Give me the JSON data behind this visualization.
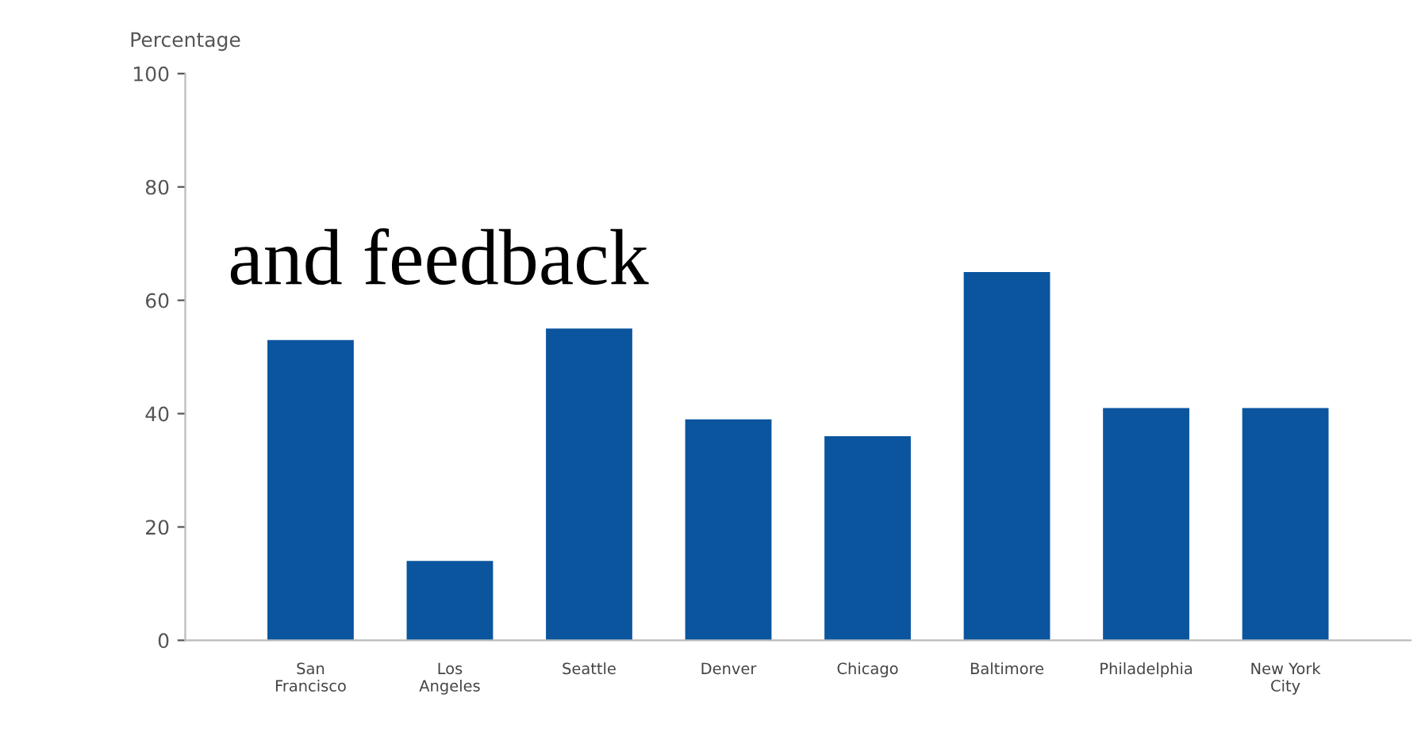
{
  "chart_data": {
    "type": "bar",
    "ylabel": "Percentage",
    "categories": [
      "San\nFrancisco",
      "Los\nAngeles",
      "Seattle",
      "Denver",
      "Chicago",
      "Baltimore",
      "Philadelphia",
      "New York\nCity"
    ],
    "values": [
      53,
      14,
      55,
      39,
      36,
      65,
      41,
      41
    ],
    "color": "#0b559f",
    "ylim": [
      0,
      100
    ],
    "yticks": [
      0,
      20,
      40,
      60,
      80,
      100
    ],
    "grid": false,
    "annotations": [
      "and feedback"
    ]
  }
}
